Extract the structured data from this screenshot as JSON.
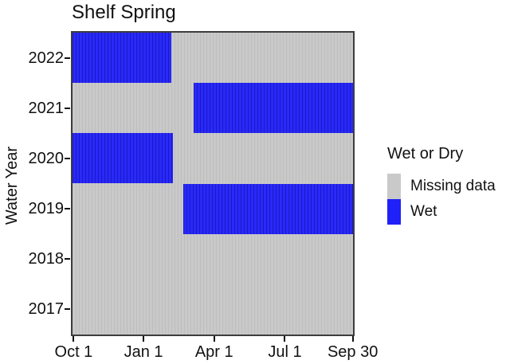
{
  "title": "Shelf Spring",
  "y_axis": {
    "label": "Water Year",
    "ticks": [
      "2022",
      "2021",
      "2020",
      "2019",
      "2018",
      "2017"
    ]
  },
  "x_axis": {
    "ticks": [
      {
        "label": "Oct 1",
        "pos": 0.004
      },
      {
        "label": "Jan 1",
        "pos": 0.253
      },
      {
        "label": "Apr 1",
        "pos": 0.505
      },
      {
        "label": "Jul 1",
        "pos": 0.757
      },
      {
        "label": "Sep 30",
        "pos": 0.999
      }
    ]
  },
  "legend": {
    "title": "Wet or Dry",
    "items": [
      {
        "label": "Missing data",
        "color_key": "missing"
      },
      {
        "label": "Wet",
        "color_key": "wet"
      }
    ]
  },
  "colors": {
    "wet": "#2020f8",
    "missing": "#c9c9c9",
    "plot_border": "#3d3d3d",
    "text": "#000000"
  },
  "chart_data": {
    "type": "heatmap",
    "title": "Shelf Spring",
    "xlabel": "",
    "ylabel": "Water Year",
    "x_ticks": [
      "Oct 1",
      "Jan 1",
      "Apr 1",
      "Jul 1",
      "Sep 30"
    ],
    "x_range": [
      "Oct 1",
      "Sep 30"
    ],
    "categories": [
      "2022",
      "2021",
      "2020",
      "2019",
      "2018",
      "2017"
    ],
    "legend_title": "Wet or Dry",
    "classes": [
      "Missing data",
      "Wet"
    ],
    "background_class": "Missing data",
    "rows": [
      {
        "water_year": "2022",
        "wet_segments": [
          {
            "x0": 0.0,
            "x1": 0.351,
            "approx_dates": "Oct 1 - early Feb"
          }
        ]
      },
      {
        "water_year": "2021",
        "wet_segments": [
          {
            "x0": 0.431,
            "x1": 1.0,
            "approx_dates": "early Mar - Sep 30"
          }
        ]
      },
      {
        "water_year": "2020",
        "wet_segments": [
          {
            "x0": 0.0,
            "x1": 0.357,
            "approx_dates": "Oct 1 - early Feb"
          }
        ]
      },
      {
        "water_year": "2019",
        "wet_segments": [
          {
            "x0": 0.394,
            "x1": 1.0,
            "approx_dates": "late Feb - Sep 30"
          }
        ]
      },
      {
        "water_year": "2018",
        "wet_segments": []
      },
      {
        "water_year": "2017",
        "wet_segments": []
      }
    ]
  }
}
